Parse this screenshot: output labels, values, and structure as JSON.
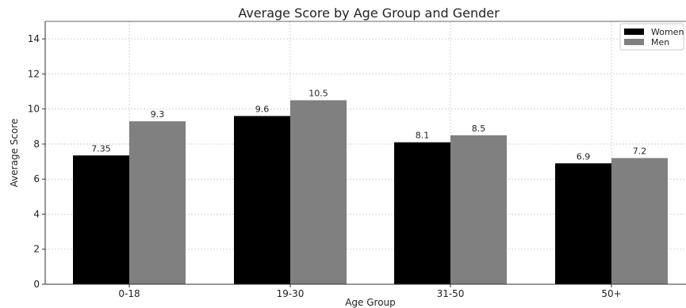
{
  "chart_data": {
    "type": "bar",
    "title": "Average Score by Age Group and Gender",
    "xlabel": "Age Group",
    "ylabel": "Average Score",
    "categories": [
      "0-18",
      "19-30",
      "31-50",
      "50+"
    ],
    "series": [
      {
        "name": "Women",
        "color": "#000000",
        "values": [
          7.35,
          9.6,
          8.1,
          6.9
        ],
        "labels": [
          "7.35",
          "9.6",
          "8.1",
          "6.9"
        ]
      },
      {
        "name": "Men",
        "color": "#808080",
        "values": [
          9.3,
          10.5,
          8.5,
          7.2
        ],
        "labels": [
          "9.3",
          "10.5",
          "8.5",
          "7.2"
        ]
      }
    ],
    "ylim": [
      0,
      15
    ],
    "yticks": [
      0,
      2,
      4,
      6,
      8,
      10,
      12,
      14
    ],
    "grid": true,
    "legend_position": "top-right"
  }
}
